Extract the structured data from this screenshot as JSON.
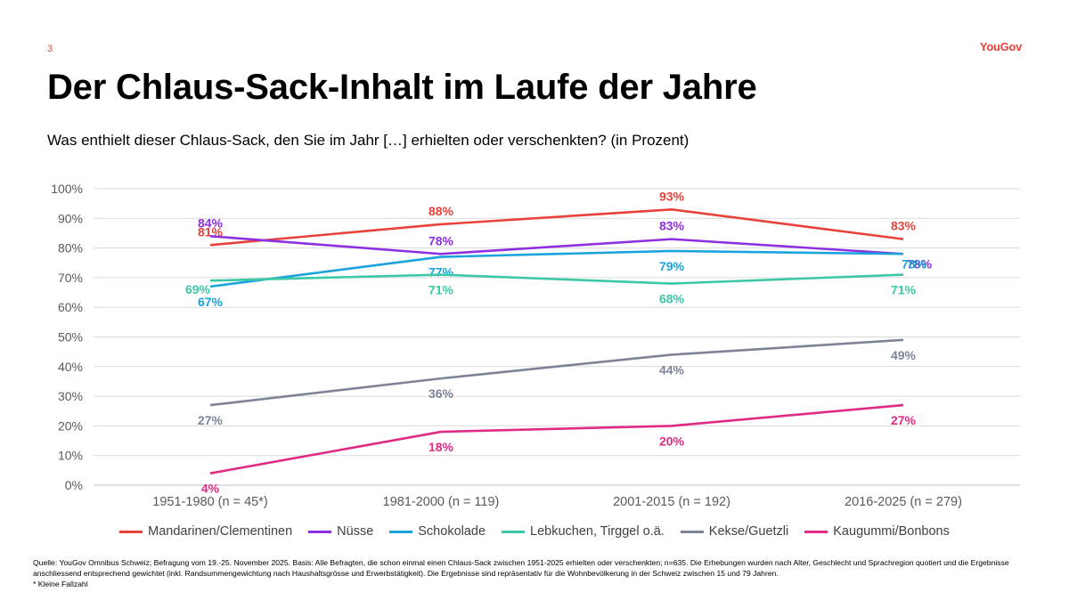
{
  "page_number": "3",
  "logo_text": "YouGov",
  "title": "Der Chlaus-Sack-Inhalt im Laufe der Jahre",
  "subtitle": "Was enthielt dieser Chlaus-Sack, den Sie im Jahr […] erhielten oder verschenkten? (in Prozent)",
  "chart_data": {
    "type": "line",
    "categories": [
      "1951-1980 (n = 45*)",
      "1981-2000 (n = 119)",
      "2001-2015 (n = 192)",
      "2016-2025 (n = 279)"
    ],
    "ylim": [
      0,
      100
    ],
    "yticks": [
      0,
      10,
      20,
      30,
      40,
      50,
      60,
      70,
      80,
      90,
      100
    ],
    "ytick_labels": [
      "0%",
      "10%",
      "20%",
      "30%",
      "40%",
      "50%",
      "60%",
      "70%",
      "80%",
      "90%",
      "100%"
    ],
    "grid": true,
    "legend_position": "bottom",
    "series": [
      {
        "name": "Mandarinen/Clementinen",
        "color": "#e8423a",
        "values": [
          81,
          88,
          93,
          83
        ],
        "labels": [
          "81%",
          "88%",
          "93%",
          "83%"
        ],
        "label_pos": [
          "above",
          "above",
          "above",
          "above"
        ]
      },
      {
        "name": "Nüsse",
        "color": "#8e2fe0",
        "values": [
          84,
          78,
          83,
          78
        ],
        "labels": [
          "84%",
          "78%",
          "83%",
          "78%"
        ],
        "label_pos": [
          "above",
          "above",
          "above",
          "right-below"
        ]
      },
      {
        "name": "Schokolade",
        "color": "#1ba3dc",
        "values": [
          67,
          77,
          79,
          78
        ],
        "labels": [
          "67%",
          "77%",
          "79%",
          "78%"
        ],
        "label_pos": [
          "below",
          "below",
          "below",
          "below-right"
        ]
      },
      {
        "name": "Lebkuchen, Tirggel o.ä.",
        "color": "#3cc8a7",
        "values": [
          69,
          71,
          68,
          71
        ],
        "labels": [
          "69%",
          "71%",
          "68%",
          "71%"
        ],
        "label_pos": [
          "below-left",
          "below",
          "below",
          "below"
        ]
      },
      {
        "name": "Kekse/Guetzli",
        "color": "#7d8497",
        "values": [
          27,
          36,
          44,
          49
        ],
        "labels": [
          "27%",
          "36%",
          "44%",
          "49%"
        ],
        "label_pos": [
          "below",
          "below",
          "below",
          "below"
        ]
      },
      {
        "name": "Kaugummi/Bonbons",
        "color": "#e02b85",
        "values": [
          4,
          18,
          20,
          27
        ],
        "labels": [
          "4%",
          "18%",
          "20%",
          "27%"
        ],
        "label_pos": [
          "below",
          "below",
          "below",
          "below"
        ]
      }
    ]
  },
  "footnote": {
    "source": "Quelle: YouGov Omnibus Schweiz; Befragung vom 19.-25. November 2025. Basis: Alle Befragten, die schon einmal einen Chlaus-Sack zwischen 1951-2025 erhielten oder verschenkten; n=635. Die Erhebungen wurden nach Alter, Geschlecht und Sprachregion quotiert und die Ergebnisse anschliessend entsprechend gewichtet (inkl. Randsummengewichtung nach Haushaltsgrösse und Erwerbstätigkeit). Die Ergebnisse sind repräsentativ für die Wohnbevölkerung in der Schweiz zwischen 15 und 79 Jahren.",
    "note": "* Kleine Fallzahl"
  }
}
